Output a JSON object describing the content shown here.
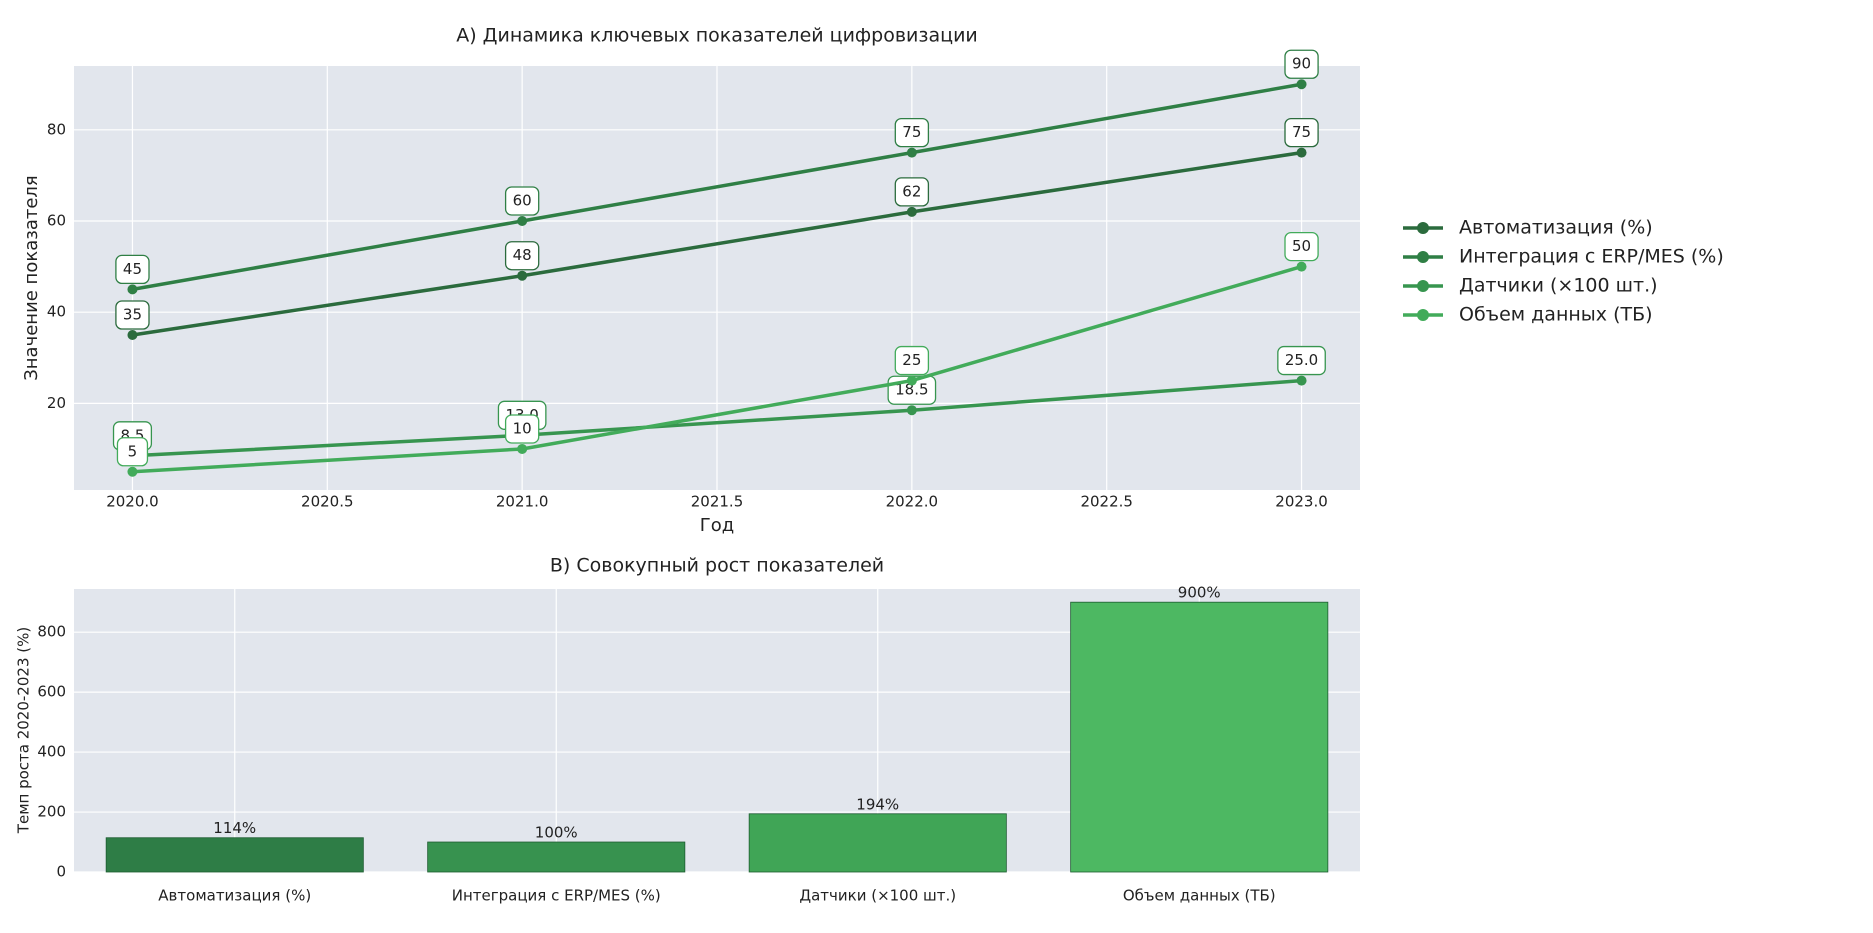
{
  "chart_data": [
    {
      "type": "line",
      "title": "A) Динамика ключевых показателей цифровизации",
      "xlabel": "Год",
      "ylabel": "Значение показателя",
      "x": [
        2020,
        2021,
        2022,
        2023
      ],
      "series": [
        {
          "name": "Автоматизация (%)",
          "color": "#2b6b3d",
          "values": [
            35,
            48,
            62,
            75
          ]
        },
        {
          "name": "Интеграция с ERP/MES (%)",
          "color": "#2f7f45",
          "values": [
            45,
            60,
            75,
            90
          ]
        },
        {
          "name": "Датчики (×100 шт.)",
          "color": "#37954f",
          "values": [
            8.5,
            13.0,
            18.5,
            25.0
          ],
          "value_labels": [
            "8.5",
            "13.0",
            "18.5",
            "25.0"
          ]
        },
        {
          "name": "Объем данных (ТБ)",
          "color": "#42ab5a",
          "values": [
            5,
            10,
            25,
            50
          ]
        }
      ],
      "xlim": [
        2019.85,
        2023.15
      ],
      "xticks": [
        {
          "value": 2020,
          "label": "2020.0"
        },
        {
          "value": 2020.5,
          "label": "2020.5"
        },
        {
          "value": 2021,
          "label": "2021.0"
        },
        {
          "value": 2021.5,
          "label": "2021.5"
        },
        {
          "value": 2022,
          "label": "2022.0"
        },
        {
          "value": 2022.5,
          "label": "2022.5"
        },
        {
          "value": 2023,
          "label": "2023.0"
        }
      ],
      "ylim": [
        1,
        94
      ],
      "yticks": [
        20,
        40,
        60,
        80
      ],
      "grid": true,
      "legend": "outside right"
    },
    {
      "type": "bar",
      "title": "B) Совокупный рост показателей",
      "ylabel": "Темп роста 2020-2023 (%)",
      "categories": [
        "Автоматизация (%)",
        "Интеграция с ERP/MES (%)",
        "Датчики (×100 шт.)",
        "Объем данных (ТБ)"
      ],
      "values": [
        114.29,
        100,
        194.12,
        900
      ],
      "value_labels": [
        "114%",
        "100%",
        "194%",
        "900%"
      ],
      "colors": [
        "#2e7d46",
        "#37924f",
        "#40a556",
        "#4db862"
      ],
      "ylim": [
        0,
        944
      ],
      "yticks": [
        0,
        200,
        400,
        600,
        800
      ],
      "grid": true
    }
  ]
}
